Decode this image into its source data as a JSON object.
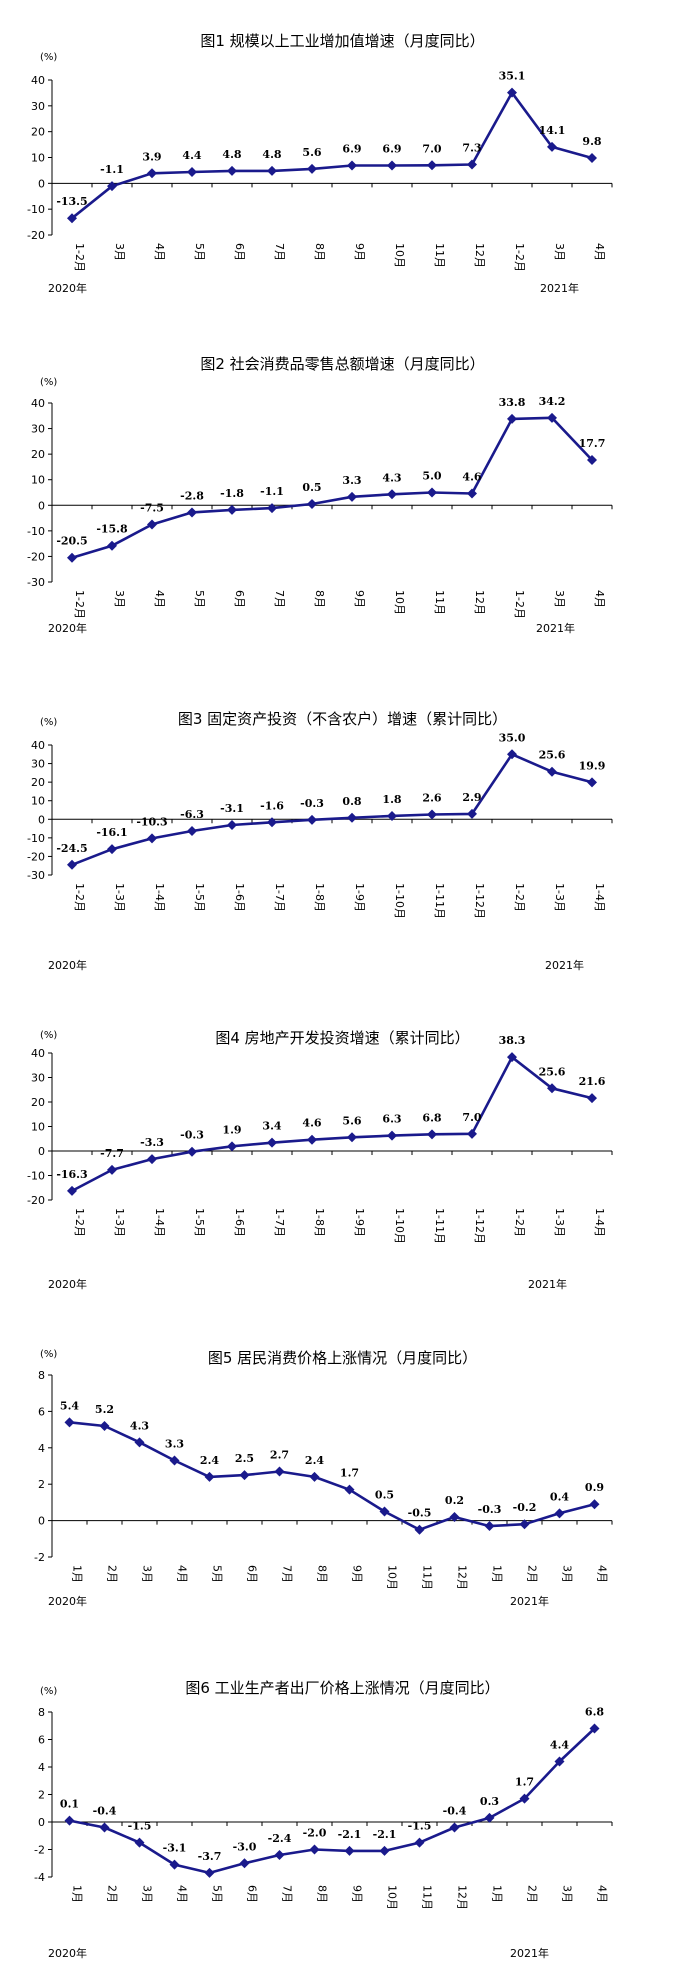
{
  "colors": {
    "line": "#1a1a8c",
    "marker": "#1a1a8c",
    "axis": "#000000"
  },
  "chart_data": [
    {
      "type": "line",
      "title": "图1   规模以上工业增加值增速（月度同比）",
      "unit": "(%)",
      "categories": [
        "1-2月",
        "3月",
        "4月",
        "5月",
        "6月",
        "7月",
        "8月",
        "9月",
        "10月",
        "11月",
        "12月",
        "1-2月",
        "3月",
        "4月"
      ],
      "values": [
        -13.5,
        -1.1,
        3.9,
        4.4,
        4.8,
        4.8,
        5.6,
        6.9,
        6.9,
        7.0,
        7.3,
        35.1,
        14.1,
        9.8
      ],
      "value_labels": [
        "-13.5",
        "-1.1",
        "3.9",
        "4.4",
        "4.8",
        "4.8",
        "5.6",
        "6.9",
        "6.9",
        "7.0",
        "7.3",
        "35.1",
        "14.1",
        "9.8"
      ],
      "ylim": [
        -20,
        40
      ],
      "yticks": [
        "40",
        "30",
        "20",
        "10",
        "0",
        "-10",
        "-20"
      ],
      "year_labels": [
        "2020年",
        "2021年"
      ]
    },
    {
      "type": "line",
      "title": "图2   社会消费品零售总额增速（月度同比）",
      "unit": "(%)",
      "categories": [
        "1-2月",
        "3月",
        "4月",
        "5月",
        "6月",
        "7月",
        "8月",
        "9月",
        "10月",
        "11月",
        "12月",
        "1-2月",
        "3月",
        "4月"
      ],
      "values": [
        -20.5,
        -15.8,
        -7.5,
        -2.8,
        -1.8,
        -1.1,
        0.5,
        3.3,
        4.3,
        5.0,
        4.6,
        33.8,
        34.2,
        17.7
      ],
      "value_labels": [
        "-20.5",
        "-15.8",
        "-7.5",
        "-2.8",
        "-1.8",
        "-1.1",
        "0.5",
        "3.3",
        "4.3",
        "5.0",
        "4.6",
        "33.8",
        "34.2",
        "17.7"
      ],
      "ylim": [
        -30,
        40
      ],
      "yticks": [
        "40",
        "30",
        "20",
        "10",
        "0",
        "-10",
        "-20",
        "-30"
      ],
      "year_labels": [
        "2020年",
        "2021年"
      ]
    },
    {
      "type": "line",
      "title": "图3   固定资产投资（不含农户）增速（累计同比）",
      "unit": "(%)",
      "categories": [
        "1-2月",
        "1-3月",
        "1-4月",
        "1-5月",
        "1-6月",
        "1-7月",
        "1-8月",
        "1-9月",
        "1-10月",
        "1-11月",
        "1-12月",
        "1-2月",
        "1-3月",
        "1-4月"
      ],
      "values": [
        -24.5,
        -16.1,
        -10.3,
        -6.3,
        -3.1,
        -1.6,
        -0.3,
        0.8,
        1.8,
        2.6,
        2.9,
        35.0,
        25.6,
        19.9
      ],
      "value_labels": [
        "-24.5",
        "-16.1",
        "-10.3",
        "-6.3",
        "-3.1",
        "-1.6",
        "-0.3",
        "0.8",
        "1.8",
        "2.6",
        "2.9",
        "35.0",
        "25.6",
        "19.9"
      ],
      "ylim": [
        -30,
        40
      ],
      "yticks": [
        "40",
        "30",
        "20",
        "10",
        "0",
        "-10",
        "-20",
        "-30"
      ],
      "year_labels": [
        "2020年",
        "2021年"
      ]
    },
    {
      "type": "line",
      "title": "图4   房地产开发投资增速（累计同比）",
      "unit": "(%)",
      "categories": [
        "1-2月",
        "1-3月",
        "1-4月",
        "1-5月",
        "1-6月",
        "1-7月",
        "1-8月",
        "1-9月",
        "1-10月",
        "1-11月",
        "1-12月",
        "1-2月",
        "1-3月",
        "1-4月"
      ],
      "values": [
        -16.3,
        -7.7,
        -3.3,
        -0.3,
        1.9,
        3.4,
        4.6,
        5.6,
        6.3,
        6.8,
        7.0,
        38.3,
        25.6,
        21.6
      ],
      "value_labels": [
        "-16.3",
        "-7.7",
        "-3.3",
        "-0.3",
        "1.9",
        "3.4",
        "4.6",
        "5.6",
        "6.3",
        "6.8",
        "7.0",
        "38.3",
        "25.6",
        "21.6"
      ],
      "ylim": [
        -20,
        40
      ],
      "yticks": [
        "40",
        "30",
        "20",
        "10",
        "0",
        "-10",
        "-20"
      ],
      "year_labels": [
        "2020年",
        "2021年"
      ]
    },
    {
      "type": "line",
      "title": "图5   居民消费价格上涨情况（月度同比）",
      "unit": "(%)",
      "categories": [
        "1月",
        "2月",
        "3月",
        "4月",
        "5月",
        "6月",
        "7月",
        "8月",
        "9月",
        "10月",
        "11月",
        "12月",
        "1月",
        "2月",
        "3月",
        "4月"
      ],
      "values": [
        5.4,
        5.2,
        4.3,
        3.3,
        2.4,
        2.5,
        2.7,
        2.4,
        1.7,
        0.5,
        -0.5,
        0.2,
        -0.3,
        -0.2,
        0.4,
        0.9
      ],
      "value_labels": [
        "5.4",
        "5.2",
        "4.3",
        "3.3",
        "2.4",
        "2.5",
        "2.7",
        "2.4",
        "1.7",
        "0.5",
        "-0.5",
        "0.2",
        "-0.3",
        "-0.2",
        "0.4",
        "0.9"
      ],
      "ylim": [
        -2,
        8
      ],
      "yticks": [
        "8",
        "6",
        "4",
        "2",
        "0",
        "-2"
      ],
      "year_labels": [
        "2020年",
        "2021年"
      ]
    },
    {
      "type": "line",
      "title": "图6   工业生产者出厂价格上涨情况（月度同比）",
      "unit": "(%)",
      "categories": [
        "1月",
        "2月",
        "3月",
        "4月",
        "5月",
        "6月",
        "7月",
        "8月",
        "9月",
        "10月",
        "11月",
        "12月",
        "1月",
        "2月",
        "3月",
        "4月"
      ],
      "values": [
        0.1,
        -0.4,
        -1.5,
        -3.1,
        -3.7,
        -3.0,
        -2.4,
        -2.0,
        -2.1,
        -2.1,
        -1.5,
        -0.4,
        0.3,
        1.7,
        4.4,
        6.8
      ],
      "value_labels": [
        "0.1",
        "-0.4",
        "-1.5",
        "-3.1",
        "-3.7",
        "-3.0",
        "-2.4",
        "-2.0",
        "-2.1",
        "-2.1",
        "-1.5",
        "-0.4",
        "0.3",
        "1.7",
        "4.4",
        "6.8"
      ],
      "ylim": [
        -4,
        8
      ],
      "yticks": [
        "8",
        "6",
        "4",
        "2",
        "0",
        "-2",
        "-4"
      ],
      "year_labels": [
        "2020年",
        "2021年"
      ]
    }
  ]
}
